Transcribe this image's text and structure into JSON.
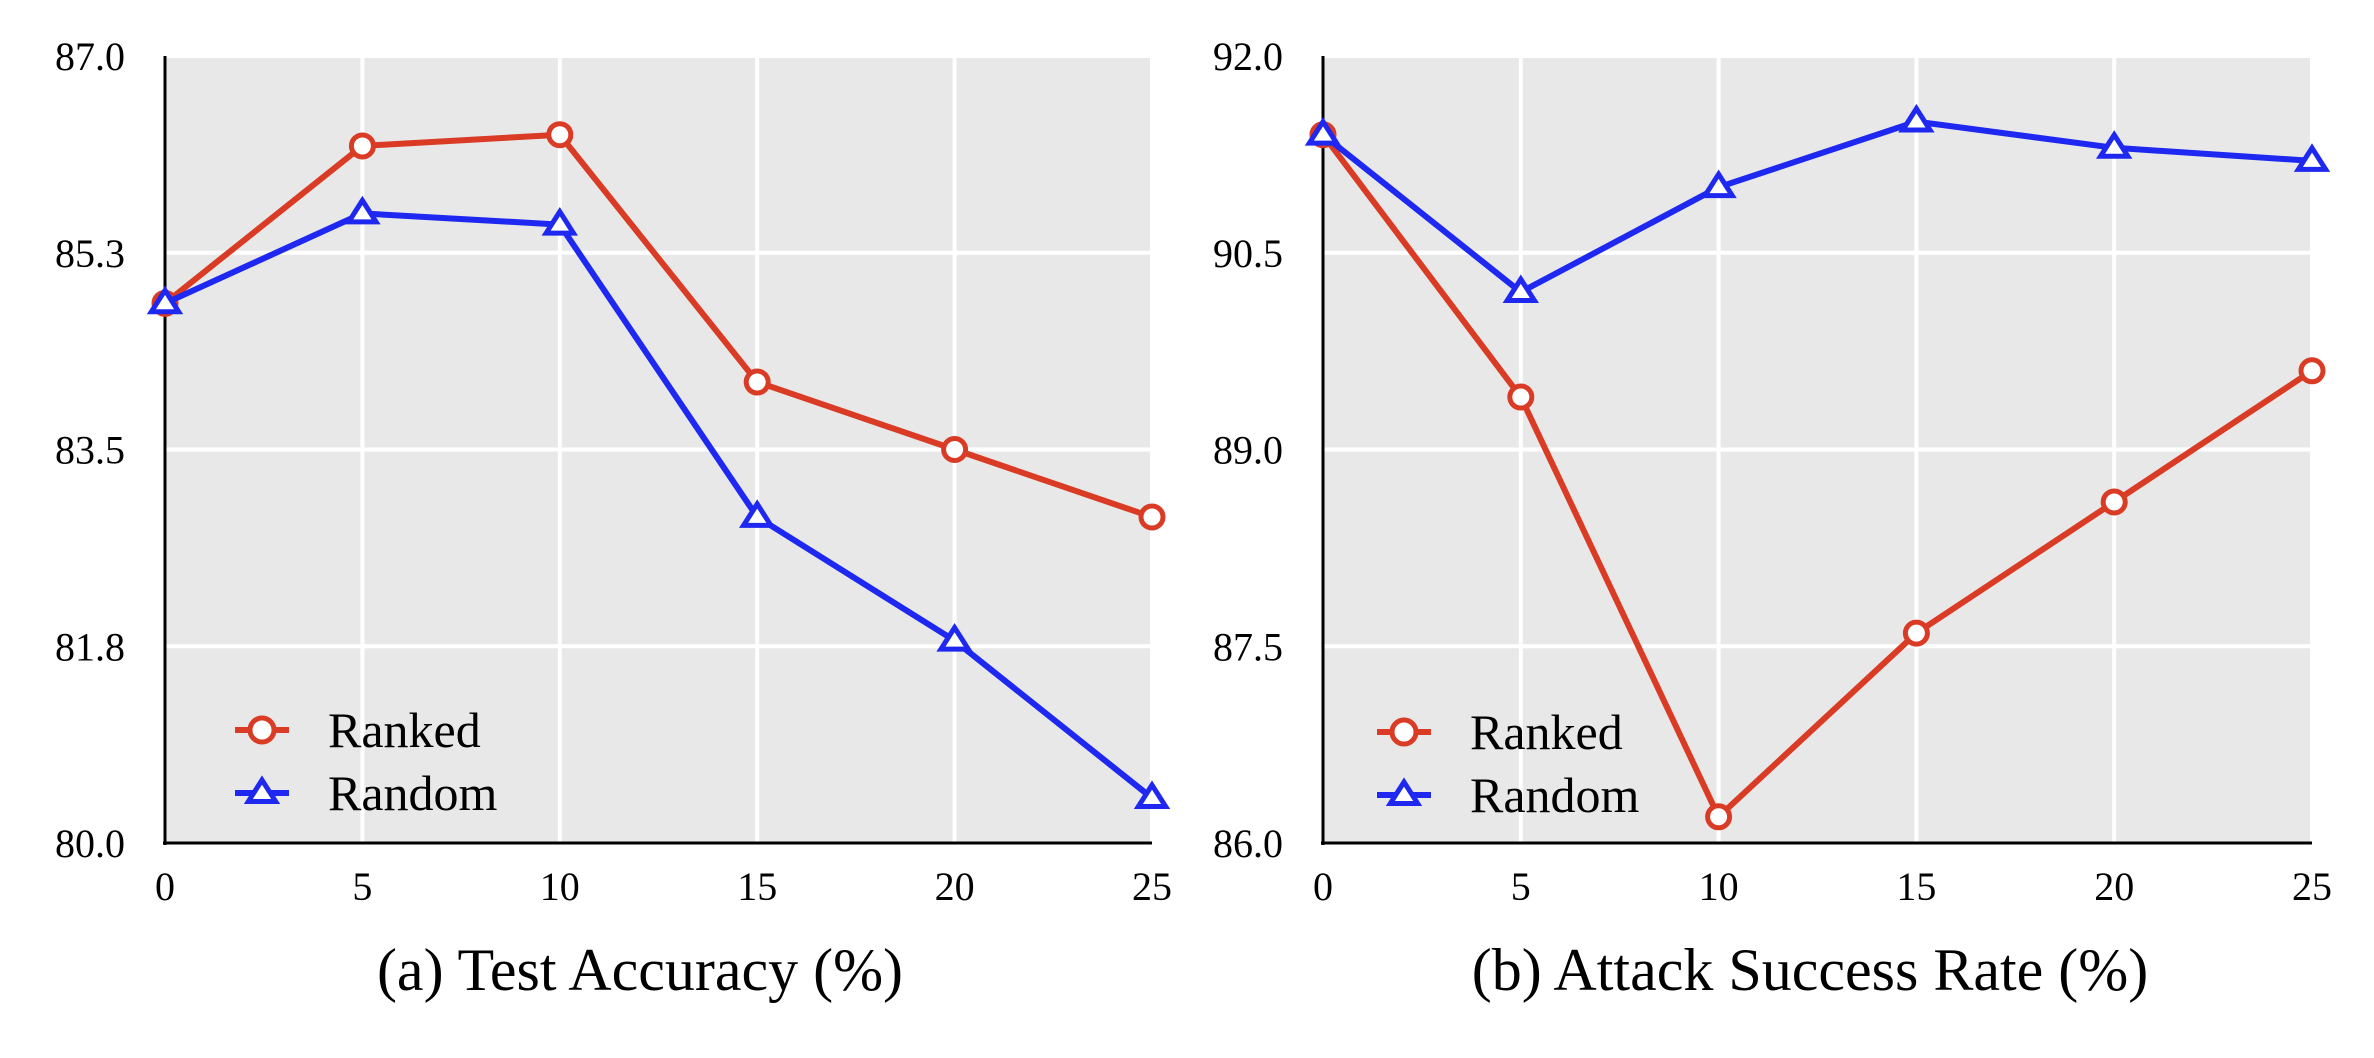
{
  "chart_data": [
    {
      "type": "line",
      "panel": "a",
      "title": "(a) Test Accuracy (%)",
      "xlabel": "",
      "ylabel": "",
      "x": [
        0,
        5,
        10,
        15,
        20,
        25
      ],
      "x_ticks": [
        "0",
        "5",
        "10",
        "15",
        "20",
        "25"
      ],
      "xlim": [
        0,
        25
      ],
      "ylim": [
        80.0,
        87.0
      ],
      "y_ticks": [
        80.0,
        81.75,
        83.5,
        85.25,
        87.0
      ],
      "y_tick_labels": [
        "80.0",
        "81.8",
        "83.5",
        "85.3",
        "87.0"
      ],
      "grid": true,
      "legend_position": "bottom-left",
      "series": [
        {
          "name": "Ranked",
          "color": "#d93b25",
          "marker": "circle",
          "values": [
            84.8,
            86.2,
            86.3,
            84.1,
            83.5,
            82.9
          ]
        },
        {
          "name": "Random",
          "color": "#1e28f0",
          "marker": "triangle",
          "values": [
            84.8,
            85.6,
            85.5,
            82.9,
            81.8,
            80.4
          ]
        }
      ]
    },
    {
      "type": "line",
      "panel": "b",
      "title": "(b) Attack Success Rate (%)",
      "xlabel": "",
      "ylabel": "",
      "x": [
        0,
        5,
        10,
        15,
        20,
        25
      ],
      "x_ticks": [
        "0",
        "5",
        "10",
        "15",
        "20",
        "25"
      ],
      "xlim": [
        0,
        25
      ],
      "ylim": [
        86.0,
        92.0
      ],
      "y_ticks": [
        86.0,
        87.5,
        89.0,
        90.5,
        92.0
      ],
      "y_tick_labels": [
        "86.0",
        "87.5",
        "89.0",
        "90.5",
        "92.0"
      ],
      "grid": true,
      "legend_position": "bottom-left",
      "series": [
        {
          "name": "Ranked",
          "color": "#d93b25",
          "marker": "circle",
          "values": [
            91.4,
            89.4,
            86.2,
            87.6,
            88.6,
            89.6
          ]
        },
        {
          "name": "Random",
          "color": "#1e28f0",
          "marker": "triangle",
          "values": [
            91.4,
            90.2,
            91.0,
            91.5,
            91.3,
            91.2
          ]
        }
      ]
    }
  ]
}
